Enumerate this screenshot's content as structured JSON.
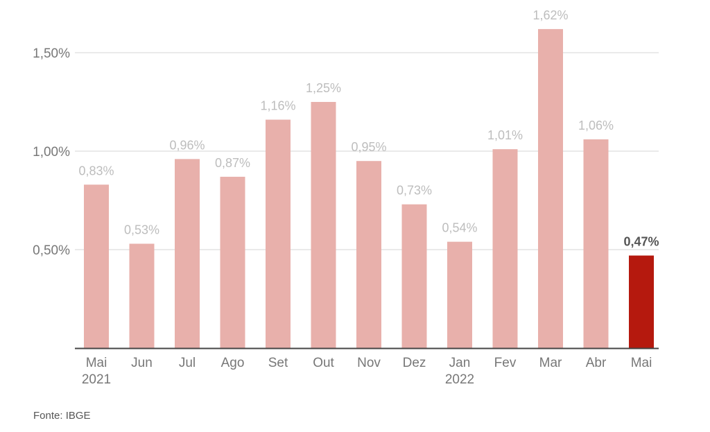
{
  "chart_data": {
    "type": "bar",
    "categories": [
      "Mai",
      "Jun",
      "Jul",
      "Ago",
      "Set",
      "Out",
      "Nov",
      "Dez",
      "Jan",
      "Fev",
      "Mar",
      "Abr",
      "Mai"
    ],
    "year_labels": [
      "2021",
      "",
      "",
      "",
      "",
      "",
      "",
      "",
      "2022",
      "",
      "",
      "",
      ""
    ],
    "values": [
      0.83,
      0.53,
      0.96,
      0.87,
      1.16,
      1.25,
      0.95,
      0.73,
      0.54,
      1.01,
      1.62,
      1.06,
      0.47
    ],
    "value_labels": [
      "0,83%",
      "0,53%",
      "0,96%",
      "0,87%",
      "1,16%",
      "1,25%",
      "0,95%",
      "0,73%",
      "0,54%",
      "1,01%",
      "1,62%",
      "1,06%",
      "0,47%"
    ],
    "highlight_index": 12,
    "ylim": [
      0,
      1.5
    ],
    "yticks": [
      0.5,
      1.0,
      1.5
    ],
    "ytick_labels": [
      "0,50%",
      "1,00%",
      "1,50%"
    ],
    "grid": true,
    "colors": {
      "bar": "#e8b0ab",
      "bar_highlight": "#b5190e",
      "grid": "#e3e3e3",
      "axis": "#444444"
    },
    "title": "",
    "xlabel": "",
    "ylabel": ""
  },
  "source": "Fonte: IBGE"
}
